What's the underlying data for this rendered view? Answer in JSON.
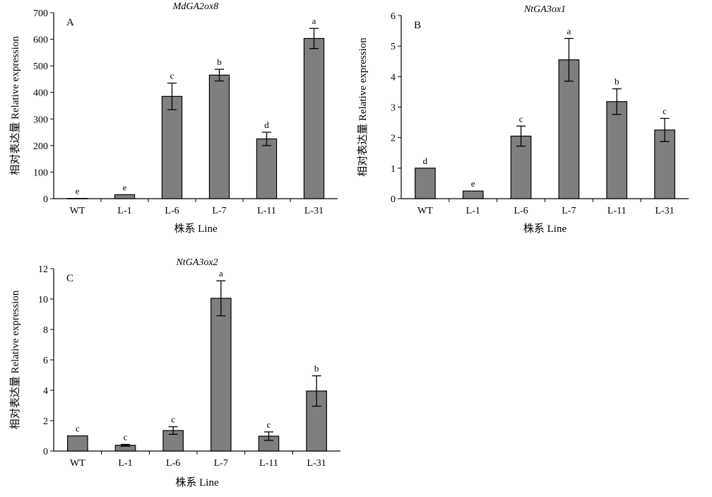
{
  "chart_data": [
    {
      "type": "bar",
      "panel_letter": "A",
      "title": "MdGA2ox8",
      "xlabel": "株系 Line",
      "ylabel": "相对表达量 Relative expression",
      "categories": [
        "WT",
        "L-1",
        "L-6",
        "L-7",
        "L-11",
        "L-31"
      ],
      "values": [
        1,
        15,
        385,
        465,
        225,
        603
      ],
      "errors": [
        0,
        0,
        50,
        22,
        25,
        38
      ],
      "significance": [
        "e",
        "e",
        "c",
        "b",
        "d",
        "a"
      ],
      "ylim": [
        0,
        700
      ],
      "yticks": [
        0,
        100,
        200,
        300,
        400,
        500,
        600,
        700
      ],
      "bar_color": "#7f7f7f",
      "grid": false
    },
    {
      "type": "bar",
      "panel_letter": "B",
      "title": "NtGA3ox1",
      "xlabel": "株系 Line",
      "ylabel": "相对表达量 Relative expression",
      "categories": [
        "WT",
        "L-1",
        "L-6",
        "L-7",
        "L-11",
        "L-31"
      ],
      "values": [
        1.0,
        0.25,
        2.05,
        4.55,
        3.18,
        2.25
      ],
      "errors": [
        0,
        0,
        0.33,
        0.7,
        0.42,
        0.38
      ],
      "significance": [
        "d",
        "e",
        "c",
        "a",
        "b",
        "c"
      ],
      "ylim": [
        0,
        6
      ],
      "yticks": [
        0,
        1,
        2,
        3,
        4,
        5,
        6
      ],
      "bar_color": "#7f7f7f",
      "grid": false
    },
    {
      "type": "bar",
      "panel_letter": "C",
      "title": "NtGA3ox2",
      "xlabel": "株系 Line",
      "ylabel": "相对表达量 Relative expression",
      "categories": [
        "WT",
        "L-1",
        "L-6",
        "L-7",
        "L-11",
        "L-31"
      ],
      "values": [
        1.0,
        0.38,
        1.35,
        10.05,
        0.98,
        3.95
      ],
      "errors": [
        0,
        0.06,
        0.25,
        1.15,
        0.28,
        1.0
      ],
      "significance": [
        "c",
        "c",
        "c",
        "a",
        "c",
        "b"
      ],
      "ylim": [
        0,
        12
      ],
      "yticks": [
        0,
        2,
        4,
        6,
        8,
        10,
        12
      ],
      "bar_color": "#7f7f7f",
      "grid": false
    }
  ]
}
